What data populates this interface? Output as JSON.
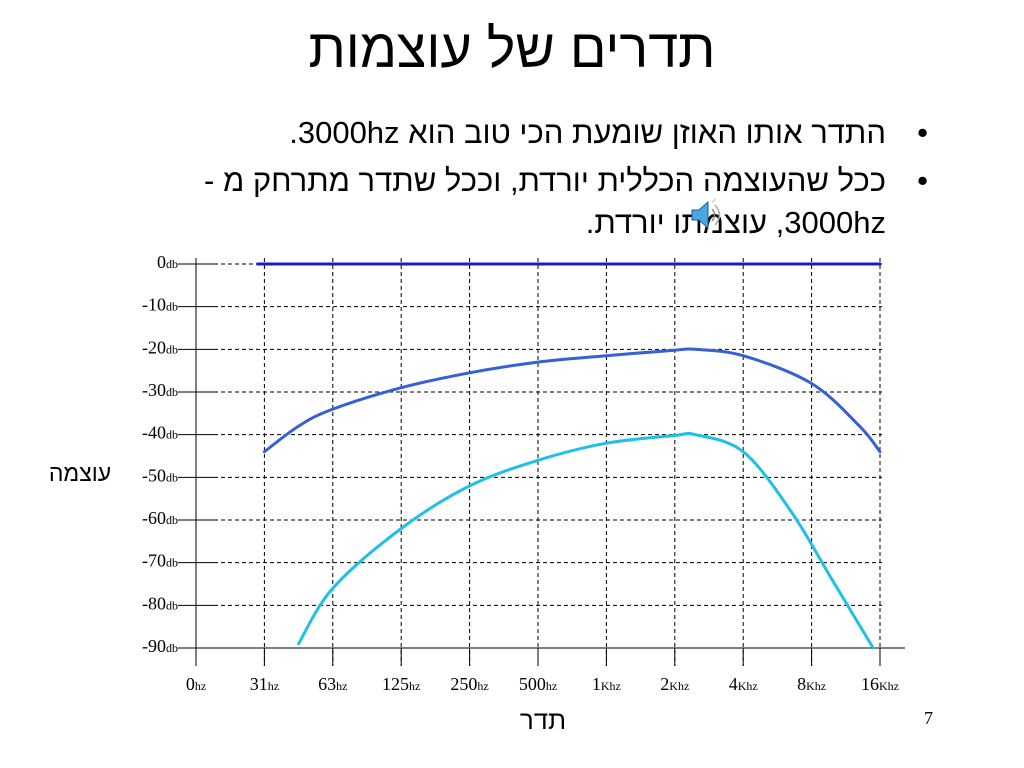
{
  "slide": {
    "title": "תדרים של עוצמות",
    "bullets": [
      "התדר אותו האוזן שומעת הכי טוב הוא 3000hz.",
      "ככל שהעוצמה הכללית יורדת, וככל שתדר מתרחק מ - 3000hz, עוצמתו יורדת."
    ],
    "bullet_symbol": "•",
    "page_number": "7",
    "icons": [
      "speaker-icon"
    ]
  },
  "chart_data": {
    "type": "line",
    "xlabel": "תדר",
    "ylabel": "עוצמה",
    "x_ticks": [
      {
        "num": "0",
        "unit": "hz"
      },
      {
        "num": "31",
        "unit": "hz"
      },
      {
        "num": "63",
        "unit": "hz"
      },
      {
        "num": "125",
        "unit": "hz"
      },
      {
        "num": "250",
        "unit": "hz"
      },
      {
        "num": "500",
        "unit": "hz"
      },
      {
        "num": "1",
        "unit": "Khz"
      },
      {
        "num": "2",
        "unit": "Khz"
      },
      {
        "num": "4",
        "unit": "Khz"
      },
      {
        "num": "8",
        "unit": "Khz"
      },
      {
        "num": "16",
        "unit": "Khz"
      }
    ],
    "y_ticks": [
      {
        "num": "0",
        "unit": "db",
        "value": 0
      },
      {
        "num": "-10",
        "unit": "db",
        "value": -10
      },
      {
        "num": "-20",
        "unit": "db",
        "value": -20
      },
      {
        "num": "-30",
        "unit": "db",
        "value": -30
      },
      {
        "num": "-40",
        "unit": "db",
        "value": -40
      },
      {
        "num": "-50",
        "unit": "db",
        "value": -50
      },
      {
        "num": "-60",
        "unit": "db",
        "value": -60
      },
      {
        "num": "-70",
        "unit": "db",
        "value": -70
      },
      {
        "num": "-80",
        "unit": "db",
        "value": -80
      },
      {
        "num": "-90",
        "unit": "db",
        "value": -90
      }
    ],
    "ylim": [
      -90,
      0
    ],
    "grid": true,
    "series": [
      {
        "color": "#1a1fbf",
        "points": [
          [
            0.9,
            0
          ],
          [
            10,
            0
          ]
        ]
      },
      {
        "color": "#3560d8",
        "points": [
          [
            1.0,
            -44
          ],
          [
            1.5,
            -38
          ],
          [
            2,
            -34
          ],
          [
            3,
            -29
          ],
          [
            4,
            -25.5
          ],
          [
            5,
            -23
          ],
          [
            6,
            -21.5
          ],
          [
            7,
            -20.2
          ],
          [
            7.3,
            -20
          ],
          [
            8,
            -21.5
          ],
          [
            9,
            -28
          ],
          [
            9.7,
            -38
          ],
          [
            10,
            -44
          ]
        ]
      },
      {
        "color": "#1ec0e8",
        "points": [
          [
            1.5,
            -89
          ],
          [
            2,
            -76
          ],
          [
            3,
            -62
          ],
          [
            4,
            -52
          ],
          [
            5,
            -46
          ],
          [
            6,
            -42
          ],
          [
            7,
            -40.2
          ],
          [
            7.3,
            -40
          ],
          [
            8,
            -44
          ],
          [
            8.7,
            -58
          ],
          [
            9.3,
            -74
          ],
          [
            9.9,
            -90
          ]
        ]
      }
    ]
  }
}
